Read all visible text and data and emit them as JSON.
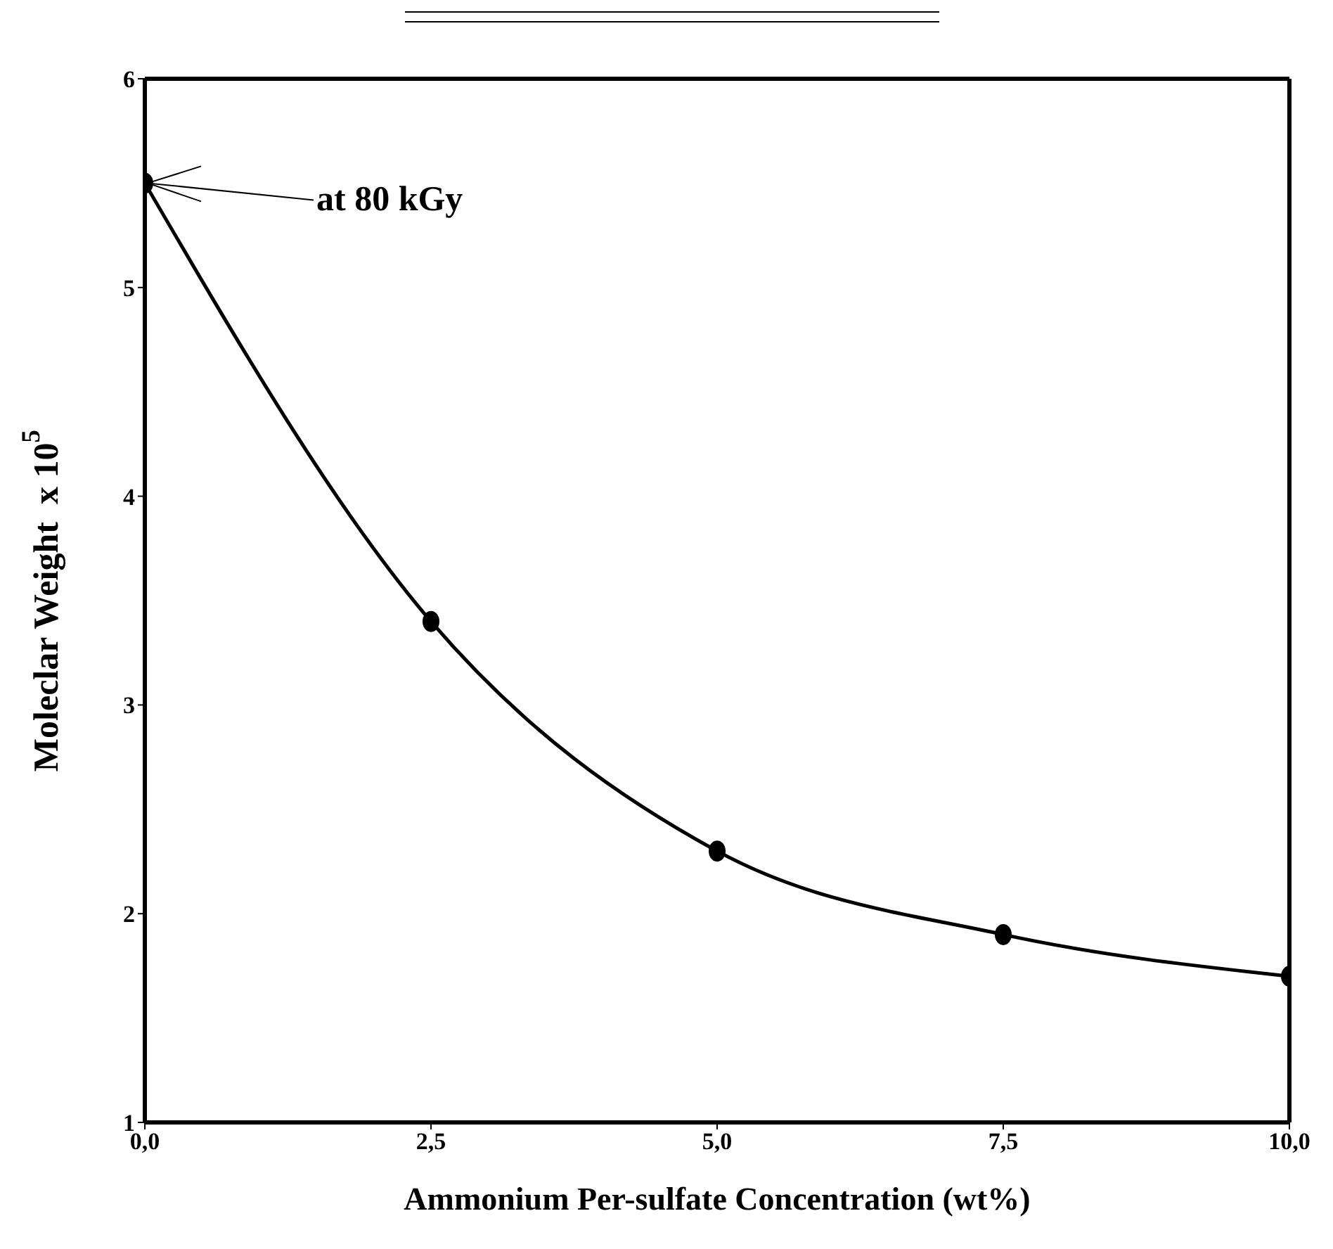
{
  "chart_data": {
    "type": "line",
    "xlabel": "Ammonium Per-sulfate Concentration (wt%)",
    "ylabel": "Moleclar Weight  x 10$^{5}$",
    "x": [
      0,
      2.5,
      5,
      7.5,
      10
    ],
    "series": [
      {
        "color": "#000000",
        "values": [
          5.5,
          3.4,
          2.3,
          1.9,
          1.7
        ]
      }
    ],
    "xlim": [
      0,
      10
    ],
    "xticks": [
      {
        "value": 0,
        "label": "0,0"
      },
      {
        "value": 2.5,
        "label": "2,5"
      },
      {
        "value": 5,
        "label": "5,0"
      },
      {
        "value": 7.5,
        "label": "7,5"
      },
      {
        "value": 10,
        "label": "10,0"
      }
    ],
    "ylim": [
      1,
      6
    ],
    "yticks": [
      1,
      2,
      3,
      4,
      5,
      6
    ],
    "annotations": [
      {
        "text": "at 80 kGy",
        "x": 0,
        "y": 5.5
      }
    ],
    "marker": "circle",
    "line_style": "solid",
    "grid": false,
    "legend": false
  }
}
